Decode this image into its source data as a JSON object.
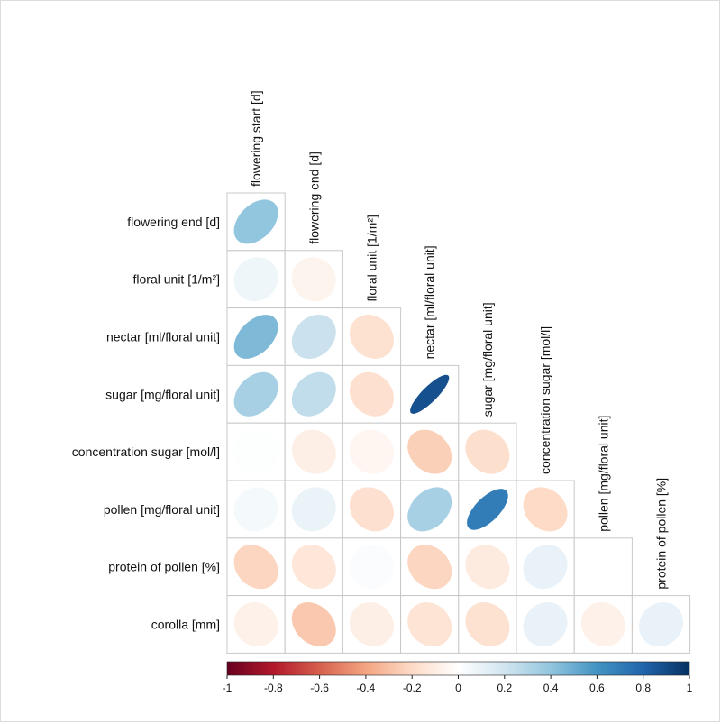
{
  "chart_data": {
    "type": "heatmap",
    "subtype": "correlation-matrix-lower-triangle",
    "glyph": "ellipse",
    "variables": [
      "flowering start [d]",
      "flowering end [d]",
      "floral unit [1/m²]",
      "nectar [ml/floral unit]",
      "sugar [mg/floral unit]",
      "concentration sugar [mol/l]",
      "pollen [mg/floral unit]",
      "protein of pollen [%]",
      "corolla [mm]"
    ],
    "row_labels": [
      "flowering end [d]",
      "floral unit [1/m²]",
      "nectar [ml/floral unit]",
      "sugar [mg/floral unit]",
      "concentration sugar [mol/l]",
      "pollen [mg/floral unit]",
      "protein of pollen [%]",
      "corolla [mm]"
    ],
    "column_labels": [
      "flowering start [d]",
      "flowering end [d]",
      "floral unit [1/m²]",
      "nectar [ml/floral unit]",
      "sugar [mg/floral unit]",
      "concentration sugar [mol/l]",
      "pollen [mg/floral unit]",
      "protein of pollen [%]"
    ],
    "values": [
      [
        0.4
      ],
      [
        0.07,
        -0.06
      ],
      [
        0.45,
        0.22,
        -0.16
      ],
      [
        0.33,
        0.25,
        -0.17,
        0.88
      ],
      [
        0.01,
        -0.09,
        -0.05,
        -0.24,
        -0.18
      ],
      [
        0.05,
        0.09,
        -0.17,
        0.33,
        0.7,
        -0.2
      ],
      [
        -0.22,
        -0.14,
        0.02,
        -0.22,
        -0.11,
        0.1,
        0.0
      ],
      [
        -0.08,
        -0.27,
        -0.09,
        -0.15,
        -0.16,
        0.1,
        -0.08,
        0.1
      ]
    ],
    "color_scale": {
      "min": -1,
      "max": 1,
      "ticks": [
        -1,
        -0.8,
        -0.6,
        -0.4,
        -0.2,
        0,
        0.2,
        0.4,
        0.6,
        0.8,
        1
      ],
      "tick_labels": [
        "-1",
        "-0.8",
        "-0.6",
        "-0.4",
        "-0.2",
        "0",
        "0.2",
        "0.4",
        "0.6",
        "0.8",
        "1"
      ],
      "colors": [
        "#67001F",
        "#B2182B",
        "#D6604D",
        "#F4A582",
        "#FDDBC7",
        "#FFFFFF",
        "#D1E5F0",
        "#92C5DE",
        "#4393C3",
        "#2166AC",
        "#053061"
      ]
    },
    "grid": true,
    "legend": "bottom"
  }
}
